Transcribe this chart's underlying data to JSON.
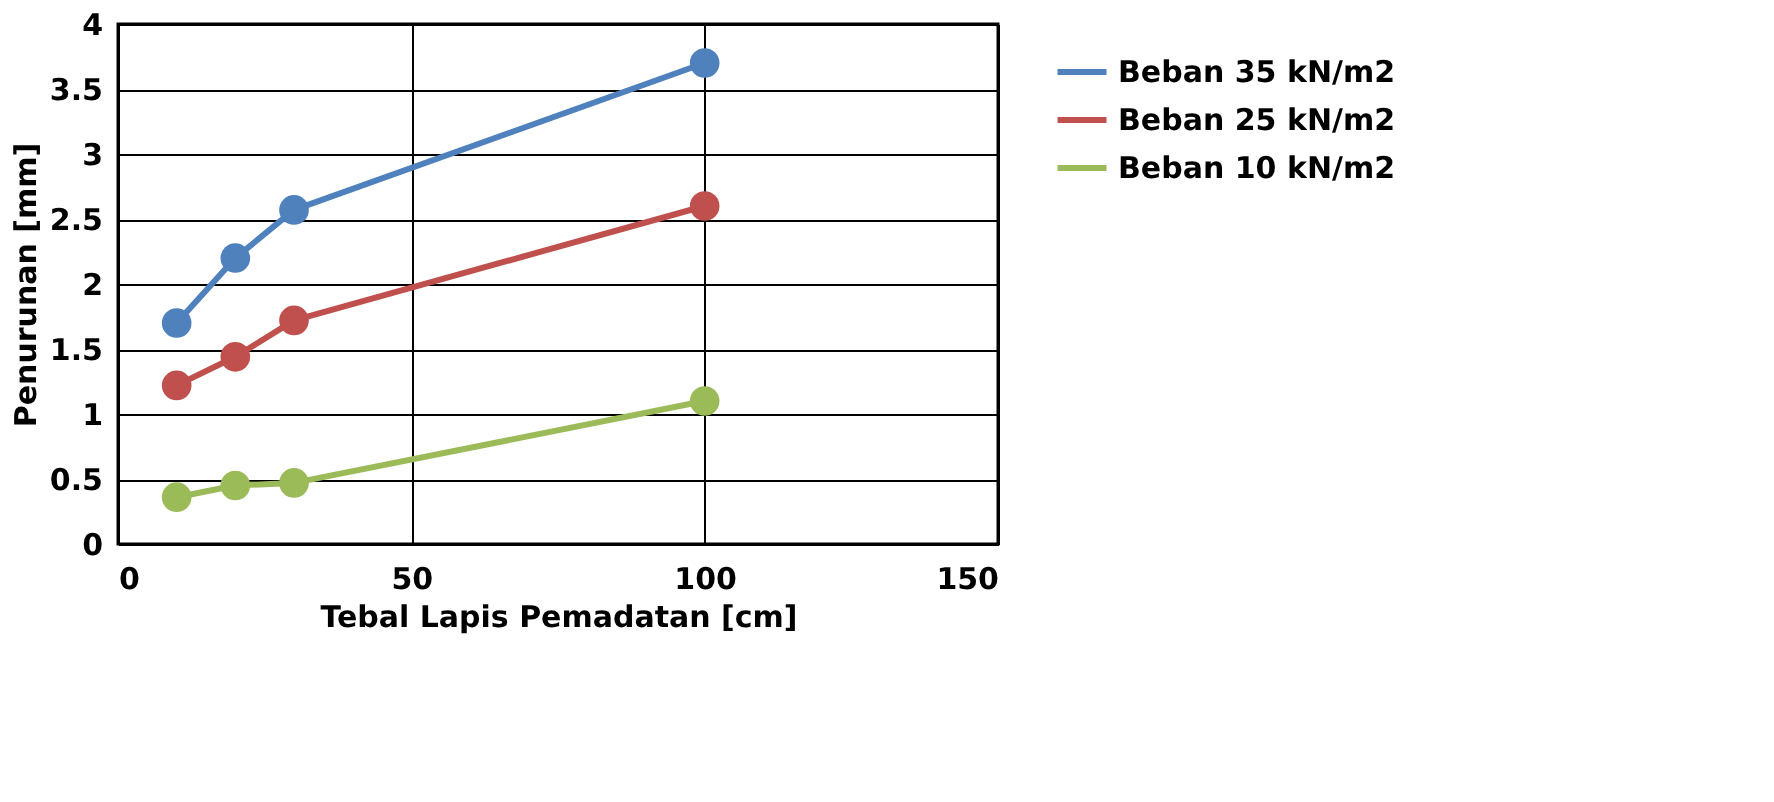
{
  "chart_data": {
    "type": "line",
    "xlabel": "Tebal Lapis Pemadatan [cm]",
    "ylabel": "Penurunan [mm]",
    "x": [
      10,
      20,
      30,
      100
    ],
    "series": [
      {
        "name": "Beban 35 kN/m2",
        "color": "#4f81bd",
        "values": [
          1.7,
          2.2,
          2.57,
          3.7
        ]
      },
      {
        "name": "Beban 25 kN/m2",
        "color": "#c0504d",
        "values": [
          1.22,
          1.44,
          1.72,
          2.6
        ]
      },
      {
        "name": "Beban 10 kN/m2",
        "color": "#9bbb59",
        "values": [
          0.36,
          0.45,
          0.47,
          1.1
        ]
      }
    ],
    "xlim": [
      0,
      150
    ],
    "xticks": [
      0,
      50,
      100,
      150
    ],
    "ylim": [
      0,
      4
    ],
    "yticks": [
      0,
      0.5,
      1,
      1.5,
      2,
      2.5,
      3,
      3.5,
      4
    ],
    "grid": true,
    "legend": "right",
    "marker": "circle",
    "line_style": "solid"
  }
}
